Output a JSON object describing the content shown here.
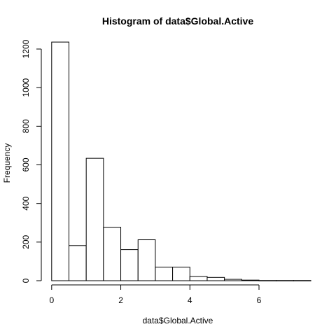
{
  "chart_data": {
    "type": "bar",
    "title": "Histogram of data$Global.Active",
    "xlabel": "data$Global.Active",
    "ylabel": "Frequency",
    "xlim": [
      -0.3,
      7.6
    ],
    "ylim": [
      0,
      1240
    ],
    "x_ticks": [
      0,
      2,
      4,
      6
    ],
    "y_ticks": [
      0,
      200,
      400,
      600,
      800,
      1000,
      1200
    ],
    "bin_width": 0.5,
    "bins": [
      {
        "start": 0.0,
        "end": 0.5,
        "value": 1236
      },
      {
        "start": 0.5,
        "end": 1.0,
        "value": 182
      },
      {
        "start": 1.0,
        "end": 1.5,
        "value": 634
      },
      {
        "start": 1.5,
        "end": 2.0,
        "value": 277
      },
      {
        "start": 2.0,
        "end": 2.5,
        "value": 161
      },
      {
        "start": 2.5,
        "end": 3.0,
        "value": 212
      },
      {
        "start": 3.0,
        "end": 3.5,
        "value": 70
      },
      {
        "start": 3.5,
        "end": 4.0,
        "value": 70
      },
      {
        "start": 4.0,
        "end": 4.5,
        "value": 22
      },
      {
        "start": 4.5,
        "end": 5.0,
        "value": 17
      },
      {
        "start": 5.0,
        "end": 5.5,
        "value": 7
      },
      {
        "start": 5.5,
        "end": 6.0,
        "value": 3
      },
      {
        "start": 6.0,
        "end": 6.5,
        "value": 1
      },
      {
        "start": 6.5,
        "end": 7.0,
        "value": 1
      },
      {
        "start": 7.0,
        "end": 7.5,
        "value": 1
      }
    ],
    "grid": false,
    "bar_fill": "#ffffff",
    "bar_stroke": "#000000"
  }
}
